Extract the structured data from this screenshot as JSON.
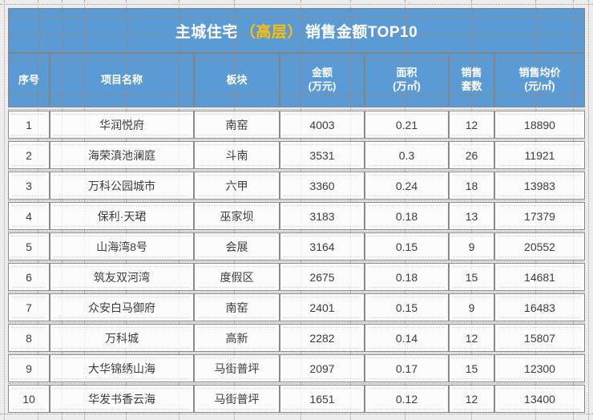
{
  "title": {
    "prefix": "主城住宅",
    "highlight": "（高层）",
    "suffix": "销售金额TOP10"
  },
  "columns": [
    {
      "line1": "序号",
      "line2": ""
    },
    {
      "line1": "项目名称",
      "line2": ""
    },
    {
      "line1": "板块",
      "line2": ""
    },
    {
      "line1": "金额",
      "line2": "(万元)"
    },
    {
      "line1": "面积",
      "line2": "(万㎡)"
    },
    {
      "line1": "销售",
      "line2": "套数"
    },
    {
      "line1": "销售均价",
      "line2": "(元/㎡)"
    }
  ],
  "rows": [
    {
      "rank": "1",
      "project": "华润悦府",
      "district": "南窑",
      "amount": "4003",
      "area": "0.21",
      "units": "12",
      "avg_price": "18890"
    },
    {
      "rank": "2",
      "project": "海荣滇池澜庭",
      "district": "斗南",
      "amount": "3531",
      "area": "0.3",
      "units": "26",
      "avg_price": "11921"
    },
    {
      "rank": "3",
      "project": "万科公园城市",
      "district": "六甲",
      "amount": "3360",
      "area": "0.24",
      "units": "18",
      "avg_price": "13983"
    },
    {
      "rank": "4",
      "project": "保利·天珺",
      "district": "巫家坝",
      "amount": "3183",
      "area": "0.18",
      "units": "13",
      "avg_price": "17379"
    },
    {
      "rank": "5",
      "project": "山海湾8号",
      "district": "会展",
      "amount": "3164",
      "area": "0.15",
      "units": "9",
      "avg_price": "20552"
    },
    {
      "rank": "6",
      "project": "筑友双河湾",
      "district": "度假区",
      "amount": "2675",
      "area": "0.18",
      "units": "15",
      "avg_price": "14681"
    },
    {
      "rank": "7",
      "project": "众安白马御府",
      "district": "南窑",
      "amount": "2401",
      "area": "0.15",
      "units": "9",
      "avg_price": "16483"
    },
    {
      "rank": "8",
      "project": "万科城",
      "district": "高新",
      "amount": "2282",
      "area": "0.14",
      "units": "12",
      "avg_price": "15807"
    },
    {
      "rank": "9",
      "project": "大华锦绣山海",
      "district": "马街普坪",
      "amount": "2097",
      "area": "0.17",
      "units": "15",
      "avg_price": "12300"
    },
    {
      "rank": "10",
      "project": "华发书香云海",
      "district": "马街普坪",
      "amount": "1651",
      "area": "0.12",
      "units": "12",
      "avg_price": "13400"
    }
  ],
  "colors": {
    "header_blue": "#5b9bd5",
    "title_highlight_yellow": "#ffc000",
    "table_border_gray": "#848484",
    "background_gray": "#ededed"
  },
  "chart_data": {
    "type": "table",
    "title": "主城住宅（高层）销售金额TOP10",
    "columns": [
      "序号",
      "项目名称",
      "板块",
      "金额(万元)",
      "面积(万㎡)",
      "销售套数",
      "销售均价(元/㎡)"
    ],
    "rows": [
      [
        1,
        "华润悦府",
        "南窑",
        4003,
        0.21,
        12,
        18890
      ],
      [
        2,
        "海荣滇池澜庭",
        "斗南",
        3531,
        0.3,
        26,
        11921
      ],
      [
        3,
        "万科公园城市",
        "六甲",
        3360,
        0.24,
        18,
        13983
      ],
      [
        4,
        "保利·天珺",
        "巫家坝",
        3183,
        0.18,
        13,
        17379
      ],
      [
        5,
        "山海湾8号",
        "会展",
        3164,
        0.15,
        9,
        20552
      ],
      [
        6,
        "筑友双河湾",
        "度假区",
        2675,
        0.18,
        15,
        14681
      ],
      [
        7,
        "众安白马御府",
        "南窑",
        2401,
        0.15,
        9,
        16483
      ],
      [
        8,
        "万科城",
        "高新",
        2282,
        0.14,
        12,
        15807
      ],
      [
        9,
        "大华锦绣山海",
        "马街普坪",
        2097,
        0.17,
        15,
        12300
      ],
      [
        10,
        "华发书香云海",
        "马街普坪",
        1651,
        0.12,
        12,
        13400
      ]
    ]
  }
}
